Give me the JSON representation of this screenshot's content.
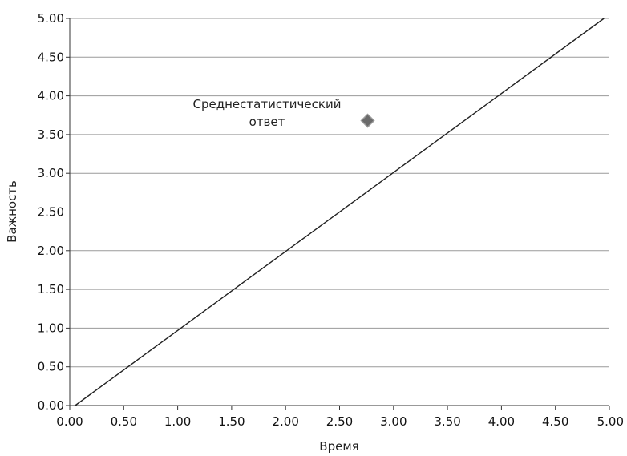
{
  "chart_data": {
    "type": "scatter",
    "xlabel": "Время",
    "ylabel": "Важность",
    "xlim": [
      0,
      5
    ],
    "ylim": [
      0,
      5
    ],
    "x_ticks": [
      "0.00",
      "0.50",
      "1.00",
      "1.50",
      "2.00",
      "2.50",
      "3.00",
      "3.50",
      "4.00",
      "4.50",
      "5.00"
    ],
    "y_ticks": [
      "0.00",
      "0.50",
      "1.00",
      "1.50",
      "2.00",
      "2.50",
      "3.00",
      "3.50",
      "4.00",
      "4.50",
      "5.00"
    ],
    "grid": "horizontal",
    "reference_line": {
      "x": [
        0.05,
        4.95
      ],
      "y": [
        0,
        5
      ]
    },
    "points": [
      {
        "x": 2.76,
        "y": 3.68,
        "marker": "diamond",
        "color": "#6b6b6b"
      }
    ],
    "annotation": {
      "lines": [
        "Среднестатистический",
        "ответ"
      ]
    }
  }
}
